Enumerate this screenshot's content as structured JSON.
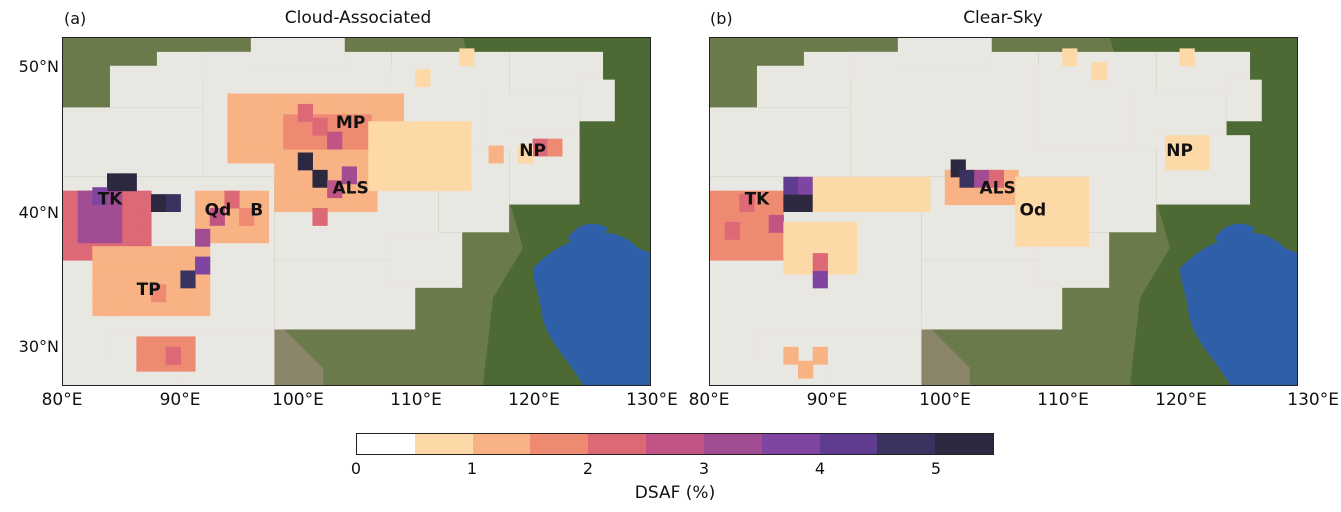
{
  "figure": {
    "panels": [
      {
        "letter": "(a)",
        "title": "Cloud-Associated"
      },
      {
        "letter": "(b)",
        "title": "Clear-Sky"
      }
    ],
    "lat_ticks": [
      "50°N",
      "40°N",
      "30°N"
    ],
    "lon_ticks": [
      "80°E",
      "90°E",
      "100°E",
      "110°E",
      "120°E",
      "130°E"
    ],
    "lon_ticks_b": [
      "80°E",
      "90°E",
      "100°E",
      "110°E",
      "120°E",
      "130°E"
    ]
  },
  "colorbar": {
    "label": "DSAF (%)",
    "tick_labels": [
      "0",
      "1",
      "2",
      "3",
      "4",
      "5"
    ],
    "colors": [
      "#ffffff",
      "#fcd9a6",
      "#f8b283",
      "#ef8a72",
      "#dd6876",
      "#c05585",
      "#a14c93",
      "#8045a0",
      "#5f3b91",
      "#3a3360",
      "#2b2840"
    ]
  },
  "chart_data": {
    "type": "heatmap",
    "map_extent": {
      "lon": [
        80,
        130
      ],
      "lat": [
        27,
        52
      ]
    },
    "units": "DSAF (%)",
    "color_scale": {
      "min": 0,
      "max": 5.5,
      "step": 0.5
    },
    "panels": [
      {
        "id": "a",
        "region_labels": [
          {
            "text": "MP",
            "lon": 104.5,
            "lat": 45.5
          },
          {
            "text": "NP",
            "lon": 120,
            "lat": 43.5
          },
          {
            "text": "TK",
            "lon": 84,
            "lat": 40
          },
          {
            "text": "Qd",
            "lon": 93.2,
            "lat": 39.2
          },
          {
            "text": "B",
            "lon": 96.5,
            "lat": 39.2
          },
          {
            "text": "ALS",
            "lon": 104.5,
            "lat": 40.8
          },
          {
            "text": "TP",
            "lon": 87.3,
            "lat": 33.5
          }
        ]
      },
      {
        "id": "b",
        "region_labels": [
          {
            "text": "NP",
            "lon": 120,
            "lat": 43.5
          },
          {
            "text": "TK",
            "lon": 84,
            "lat": 40
          },
          {
            "text": "ALS",
            "lon": 104.5,
            "lat": 40.8
          },
          {
            "text": "Od",
            "lon": 107.5,
            "lat": 39.2
          }
        ]
      }
    ]
  }
}
